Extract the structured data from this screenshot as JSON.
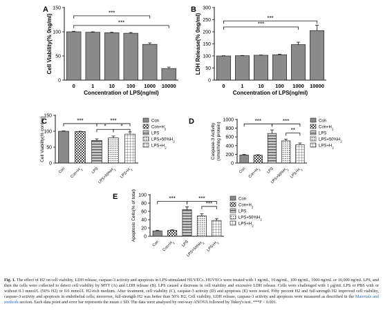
{
  "colors": {
    "bar": "#909090",
    "axis": "#111111",
    "link": "#2a6ab0"
  },
  "chart_data": [
    {
      "id": "A",
      "type": "bar",
      "panel_label": "A",
      "categories": [
        "0",
        "1",
        "10",
        "100",
        "1000",
        "10000"
      ],
      "values": [
        100,
        99,
        98,
        97,
        74,
        24
      ],
      "errors": [
        1,
        1,
        1,
        1.5,
        3,
        3
      ],
      "ylabel": "Cell Viability(% 0ng/ml)",
      "xlabel": "Concentration of LPS(ng/ml)",
      "ylim": [
        0,
        150
      ],
      "yticks": [
        0,
        50,
        100,
        150
      ],
      "grid": false,
      "legend": null,
      "annotations": [
        {
          "from": 0,
          "to": 4,
          "level": 133,
          "label": "***"
        },
        {
          "from": 0,
          "to": 5,
          "level": 113,
          "label": "***"
        }
      ]
    },
    {
      "id": "B",
      "type": "bar",
      "panel_label": "B",
      "categories": [
        "0",
        "1",
        "10",
        "100",
        "1000",
        "10000"
      ],
      "values": [
        100,
        101,
        103,
        105,
        147,
        205
      ],
      "errors": [
        1,
        1,
        1,
        2,
        10,
        22
      ],
      "ylabel": "LDH Release(% 0ng/ml)",
      "xlabel": "Concentration of LPS(ng/ml)",
      "ylim": [
        0,
        300
      ],
      "yticks": [
        0,
        50,
        100,
        150,
        200,
        250,
        300
      ],
      "grid": false,
      "legend": null,
      "annotations": [
        {
          "from": 0,
          "to": 4,
          "level": 220,
          "label": "***"
        },
        {
          "from": 0,
          "to": 5,
          "level": 245,
          "label": "***"
        }
      ]
    },
    {
      "id": "C",
      "type": "bar",
      "panel_label": "C",
      "categories": [
        "Con",
        "Con+H2",
        "LPS",
        "LPS+50%H2",
        "LPS+H2"
      ],
      "values": [
        100,
        99,
        71,
        79,
        91
      ],
      "errors": [
        1,
        1,
        5,
        6,
        7
      ],
      "ylabel": "Cell Viability(% control)",
      "xlabel": "",
      "ylim": [
        0,
        150
      ],
      "yticks": [
        0,
        50,
        100,
        150
      ],
      "grid": false,
      "legend": "right",
      "legend_entries": [
        "Con",
        "Con+H2",
        "LPS",
        "LPS+50%H2",
        "LPS+H2"
      ],
      "annotations": [
        {
          "from": 0,
          "to": 2,
          "level": 124,
          "label": "***"
        },
        {
          "from": 2,
          "to": 4,
          "level": 124,
          "label": "***"
        },
        {
          "from": 2,
          "to": 3,
          "level": 106,
          "label": "*"
        },
        {
          "from": 3,
          "to": 4,
          "level": 106,
          "label": "*"
        }
      ]
    },
    {
      "id": "D",
      "type": "bar",
      "panel_label": "D",
      "categories": [
        "Con",
        "Con+H2",
        "LPS",
        "LPS+50%H2",
        "LPS+H2"
      ],
      "values": [
        185,
        180,
        680,
        510,
        420
      ],
      "errors": [
        12,
        10,
        80,
        40,
        40
      ],
      "ylabel": "Caspase-3 Activity (nmol/h/mg protein)",
      "xlabel": "",
      "ylim": [
        0,
        1000
      ],
      "yticks": [
        0,
        200,
        400,
        600,
        800,
        1000
      ],
      "grid": false,
      "legend": "right",
      "legend_entries": [
        "Con",
        "Con+H2",
        "LPS",
        "LPS+50%H2",
        "LPS+H2"
      ],
      "annotations": [
        {
          "from": 0,
          "to": 2,
          "level": 900,
          "label": "***"
        },
        {
          "from": 2,
          "to": 4,
          "level": 900,
          "label": "***"
        },
        {
          "from": 3,
          "to": 4,
          "level": 690,
          "label": "**"
        }
      ]
    },
    {
      "id": "E",
      "type": "bar",
      "panel_label": "E",
      "categories": [
        "Con",
        "Con+H2",
        "LPS",
        "LPS+50%H2",
        "LPS+H2"
      ],
      "values": [
        13,
        14,
        64,
        49,
        38
      ],
      "errors": [
        1.5,
        1.5,
        7,
        5,
        4
      ],
      "ylabel": "Apoptosis Cells(% of total)",
      "xlabel": "",
      "ylim": [
        0,
        100
      ],
      "yticks": [
        0,
        20,
        40,
        60,
        80,
        100
      ],
      "grid": false,
      "legend": "right",
      "legend_entries": [
        "Con",
        "Con+H2",
        "LPS",
        "LPS+50%H2",
        "LPS+H2"
      ],
      "annotations": [
        {
          "from": 0,
          "to": 2,
          "level": 84,
          "label": "***"
        },
        {
          "from": 2,
          "to": 4,
          "level": 84,
          "label": "***"
        },
        {
          "from": 3,
          "to": 4,
          "level": 72,
          "label": "***"
        }
      ]
    }
  ],
  "caption": {
    "label": "Fig. 1.",
    "text_before_link": " The effect of H2 on cell viability, LDH release, caspase-3 activity and apoptosis in LPS-stimulated HUVECs. HUVECs were treated with 1 ng/mL, 10 ng/mL, 100 ng/mL, 1000 ng/mL or 10,000 ng/mL LPS, and then the cells were collected to detect cell viability by MTT (A) and LDH release (B). LPS caused a decrease in cell viability and excessive LDH release. Cells were challenged with 1 μg/mL LPS or PBS with or without 0.3 mmol/L (50% H2) or 0.6 mmol/L H2-rich medium. After treatment, cell viability (C), caspase-3 activity (D) and apoptosis (E) were tested. Fifty percent H2 and full-strength H2 improved cell viability, caspase-3 activity and apoptosis in endothelial cells; moreover, full-strength H2 was better than 50% H2. Cell viability, LDH release, caspase-3 activity and apoptosis were measured as described in the ",
    "link_text": "Materials and methods",
    "text_after_link": " section. Each data point and error bar represents the mean ± SD. The data were analyzed by one-way ANOVA followed by Tukey's test. ***P < 0.001."
  }
}
